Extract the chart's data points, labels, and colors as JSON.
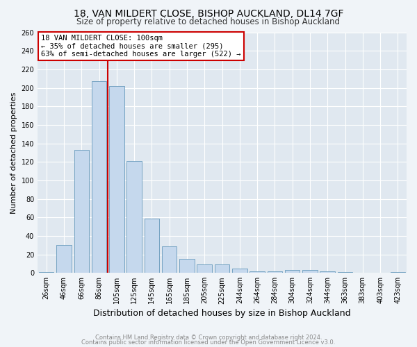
{
  "title1": "18, VAN MILDERT CLOSE, BISHOP AUCKLAND, DL14 7GF",
  "title2": "Size of property relative to detached houses in Bishop Auckland",
  "xlabel": "Distribution of detached houses by size in Bishop Auckland",
  "ylabel": "Number of detached properties",
  "bar_labels": [
    "26sqm",
    "46sqm",
    "66sqm",
    "86sqm",
    "105sqm",
    "125sqm",
    "145sqm",
    "165sqm",
    "185sqm",
    "205sqm",
    "225sqm",
    "244sqm",
    "264sqm",
    "284sqm",
    "304sqm",
    "324sqm",
    "344sqm",
    "363sqm",
    "383sqm",
    "403sqm",
    "423sqm"
  ],
  "bar_values": [
    1,
    30,
    133,
    207,
    202,
    121,
    59,
    29,
    15,
    9,
    9,
    5,
    2,
    2,
    3,
    3,
    2,
    1,
    0,
    0,
    1
  ],
  "bar_color": "#c5d8ed",
  "bar_edge_color": "#6699bb",
  "vline_color": "#cc0000",
  "annotation_box_text": "18 VAN MILDERT CLOSE: 100sqm\n← 35% of detached houses are smaller (295)\n63% of semi-detached houses are larger (522) →",
  "ylim": [
    0,
    260
  ],
  "yticks": [
    0,
    20,
    40,
    60,
    80,
    100,
    120,
    140,
    160,
    180,
    200,
    220,
    240,
    260
  ],
  "footer1": "Contains HM Land Registry data © Crown copyright and database right 2024.",
  "footer2": "Contains public sector information licensed under the Open Government Licence v3.0.",
  "bg_color": "#f0f4f8",
  "plot_bg_color": "#e0e8f0",
  "grid_color": "#ffffff",
  "title1_fontsize": 10,
  "title2_fontsize": 8.5,
  "xlabel_fontsize": 9,
  "ylabel_fontsize": 8,
  "tick_fontsize": 7,
  "footer_fontsize": 6,
  "ann_fontsize": 7.5
}
